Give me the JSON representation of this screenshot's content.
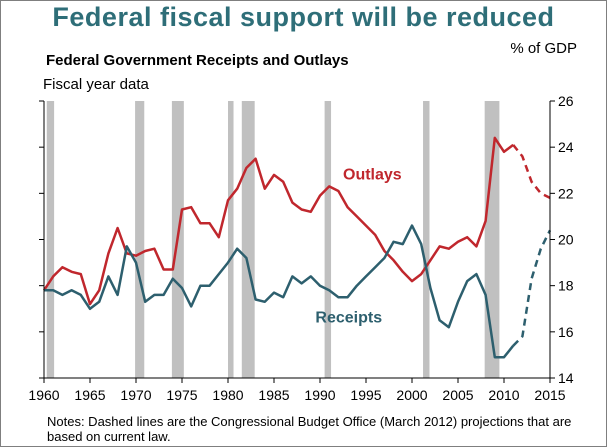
{
  "headline": "Federal fiscal support will be reduced",
  "notes": "Notes: Dashed lines are the Congressional Budget Office (March 2012) projections that are based on current law.",
  "colors": {
    "outlays": "#c0272d",
    "receipts": "#2d5f6e",
    "recession": "#c0c0c0",
    "headline": "#2e6e78"
  },
  "chart_data": {
    "type": "line",
    "title": "Federal Government Receipts and Outlays",
    "subtitle": "Fiscal year data",
    "ylabel": "% of GDP",
    "xlim": [
      1960,
      2015
    ],
    "ylim": [
      14,
      26
    ],
    "y_axis_side": "right",
    "xticks": [
      1960,
      1965,
      1970,
      1975,
      1980,
      1985,
      1990,
      1995,
      2000,
      2005,
      2010,
      2015
    ],
    "yticks": [
      14,
      16,
      18,
      20,
      22,
      24,
      26
    ],
    "recessions": [
      [
        1960.3,
        1961.1
      ],
      [
        1969.9,
        1970.9
      ],
      [
        1973.9,
        1975.2
      ],
      [
        1980.0,
        1980.6
      ],
      [
        1981.5,
        1982.9
      ],
      [
        1990.5,
        1991.2
      ],
      [
        2001.2,
        2001.9
      ],
      [
        2007.9,
        2009.5
      ]
    ],
    "series": [
      {
        "name": "Outlays",
        "x": [
          1960,
          1961,
          1962,
          1963,
          1964,
          1965,
          1966,
          1967,
          1968,
          1969,
          1970,
          1971,
          1972,
          1973,
          1974,
          1975,
          1976,
          1977,
          1978,
          1979,
          1980,
          1981,
          1982,
          1983,
          1984,
          1985,
          1986,
          1987,
          1988,
          1989,
          1990,
          1991,
          1992,
          1993,
          1994,
          1995,
          1996,
          1997,
          1998,
          1999,
          2000,
          2001,
          2002,
          2003,
          2004,
          2005,
          2006,
          2007,
          2008,
          2009,
          2010,
          2011
        ],
        "values": [
          17.8,
          18.4,
          18.8,
          18.6,
          18.5,
          17.2,
          17.8,
          19.4,
          20.5,
          19.4,
          19.3,
          19.5,
          19.6,
          18.7,
          18.7,
          21.3,
          21.4,
          20.7,
          20.7,
          20.1,
          21.7,
          22.2,
          23.1,
          23.5,
          22.2,
          22.8,
          22.5,
          21.6,
          21.3,
          21.2,
          21.9,
          22.3,
          22.1,
          21.4,
          21.0,
          20.6,
          20.2,
          19.5,
          19.1,
          18.6,
          18.2,
          18.5,
          19.1,
          19.7,
          19.6,
          19.9,
          20.1,
          19.7,
          20.8,
          24.4,
          23.8,
          24.1
        ]
      },
      {
        "name": "Outlays projection",
        "x": [
          2011,
          2012,
          2013,
          2014,
          2015
        ],
        "values": [
          24.1,
          23.6,
          22.5,
          22.0,
          21.8
        ]
      },
      {
        "name": "Receipts",
        "x": [
          1960,
          1961,
          1962,
          1963,
          1964,
          1965,
          1966,
          1967,
          1968,
          1969,
          1970,
          1971,
          1972,
          1973,
          1974,
          1975,
          1976,
          1977,
          1978,
          1979,
          1980,
          1981,
          1982,
          1983,
          1984,
          1985,
          1986,
          1987,
          1988,
          1989,
          1990,
          1991,
          1992,
          1993,
          1994,
          1995,
          1996,
          1997,
          1998,
          1999,
          2000,
          2001,
          2002,
          2003,
          2004,
          2005,
          2006,
          2007,
          2008,
          2009,
          2010,
          2011
        ],
        "values": [
          17.8,
          17.8,
          17.6,
          17.8,
          17.6,
          17.0,
          17.3,
          18.4,
          17.6,
          19.7,
          19.0,
          17.3,
          17.6,
          17.6,
          18.3,
          17.9,
          17.1,
          18.0,
          18.0,
          18.5,
          19.0,
          19.6,
          19.2,
          17.4,
          17.3,
          17.7,
          17.5,
          18.4,
          18.1,
          18.4,
          18.0,
          17.8,
          17.5,
          17.5,
          18.0,
          18.4,
          18.8,
          19.2,
          19.9,
          19.8,
          20.6,
          19.8,
          17.9,
          16.5,
          16.2,
          17.3,
          18.2,
          18.5,
          17.6,
          14.9,
          14.9,
          15.4
        ]
      },
      {
        "name": "Receipts projection",
        "x": [
          2011,
          2012,
          2013,
          2014,
          2015
        ],
        "values": [
          15.4,
          15.8,
          18.3,
          19.6,
          20.4
        ]
      }
    ],
    "series_labels": {
      "outlays": "Outlays",
      "receipts": "Receipts"
    }
  }
}
